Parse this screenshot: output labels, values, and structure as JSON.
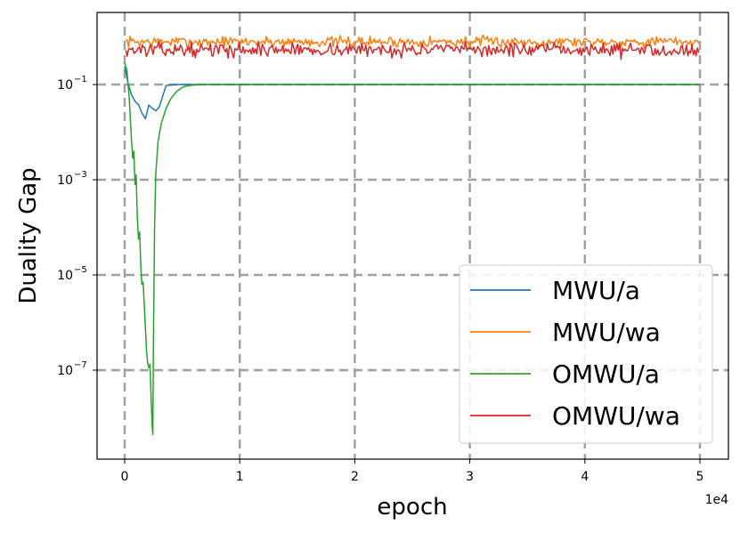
{
  "chart_data": {
    "type": "line",
    "xlabel": "epoch",
    "ylabel": "Duality Gap",
    "x_offset_label": "1e4",
    "xlim": [
      -1.0,
      5.25
    ],
    "ylim_log10": [
      -8.8,
      -0.5
    ],
    "y_scale": "log",
    "grid": true,
    "legend_position": "lower-right",
    "x_ticks": [
      0,
      1,
      2,
      3,
      4,
      5
    ],
    "y_ticks": [
      {
        "exp": -1,
        "label": "10",
        "sup": "−1"
      },
      {
        "exp": -3,
        "label": "10",
        "sup": "−3"
      },
      {
        "exp": -5,
        "label": "10",
        "sup": "−5"
      },
      {
        "exp": -7,
        "label": "10",
        "sup": "−7"
      }
    ],
    "series": [
      {
        "name": "MWU/a",
        "color": "#1f77b4",
        "points": [
          [
            0.0,
            -0.62
          ],
          [
            0.03,
            -0.98
          ],
          [
            0.06,
            -1.22
          ],
          [
            0.09,
            -1.35
          ],
          [
            0.12,
            -1.42
          ],
          [
            0.15,
            -1.6
          ],
          [
            0.18,
            -1.72
          ],
          [
            0.21,
            -1.43
          ],
          [
            0.24,
            -1.5
          ],
          [
            0.27,
            -1.55
          ],
          [
            0.3,
            -1.48
          ],
          [
            0.33,
            -1.25
          ],
          [
            0.36,
            -1.02
          ],
          [
            0.45,
            -1.0
          ],
          [
            0.6,
            -1.0
          ],
          [
            1.0,
            -1.0
          ],
          [
            2.0,
            -1.0
          ],
          [
            3.0,
            -1.0
          ],
          [
            4.0,
            -1.0
          ],
          [
            5.0,
            -1.0
          ]
        ]
      },
      {
        "name": "MWU/wa",
        "color": "#ff7f0e",
        "base": -0.1,
        "amplitude": 0.13,
        "seed": 7
      },
      {
        "name": "OMWU/a",
        "color": "#2ca02c",
        "points": [
          [
            0.0,
            -0.55
          ],
          [
            0.02,
            -0.7
          ],
          [
            0.04,
            -1.3
          ],
          [
            0.06,
            -2.2
          ],
          [
            0.07,
            -2.55
          ],
          [
            0.08,
            -2.4
          ],
          [
            0.09,
            -3.1
          ],
          [
            0.1,
            -2.9
          ],
          [
            0.11,
            -3.8
          ],
          [
            0.12,
            -4.25
          ],
          [
            0.13,
            -4.1
          ],
          [
            0.14,
            -4.8
          ],
          [
            0.15,
            -5.2
          ],
          [
            0.16,
            -5.15
          ],
          [
            0.17,
            -5.6
          ],
          [
            0.18,
            -6.1
          ],
          [
            0.19,
            -6.6
          ],
          [
            0.2,
            -6.85
          ],
          [
            0.21,
            -6.95
          ],
          [
            0.22,
            -6.88
          ],
          [
            0.23,
            -7.6
          ],
          [
            0.24,
            -8.2
          ],
          [
            0.245,
            -8.35
          ],
          [
            0.25,
            -6.4
          ],
          [
            0.26,
            -4.0
          ],
          [
            0.27,
            -2.9
          ],
          [
            0.29,
            -2.2
          ],
          [
            0.32,
            -1.8
          ],
          [
            0.36,
            -1.5
          ],
          [
            0.4,
            -1.3
          ],
          [
            0.45,
            -1.15
          ],
          [
            0.5,
            -1.06
          ],
          [
            0.56,
            -1.02
          ],
          [
            0.65,
            -1.0
          ],
          [
            1.0,
            -1.0
          ],
          [
            2.0,
            -1.0
          ],
          [
            3.0,
            -1.0
          ],
          [
            4.0,
            -1.0
          ],
          [
            5.0,
            -1.0
          ]
        ]
      },
      {
        "name": "OMWU/wa",
        "color": "#d62728",
        "base": -0.27,
        "amplitude": 0.16,
        "seed": 13
      }
    ]
  }
}
